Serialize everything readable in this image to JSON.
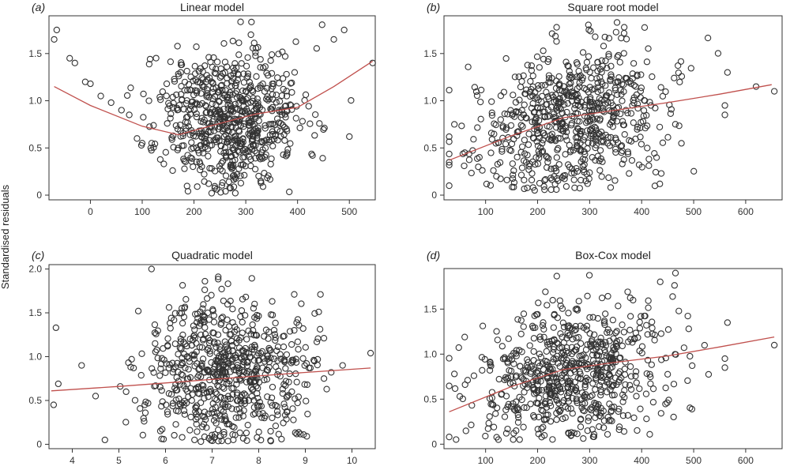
{
  "figure": {
    "ylabel": "Standardised residuals"
  },
  "colors": {
    "points": "#333333",
    "trend": "#c0504d",
    "frame": "#333333"
  },
  "chart_data": [
    {
      "type": "scatter",
      "tag": "(a)",
      "title": "Linear model",
      "xlabel": "",
      "ylabel": "Standardised residuals",
      "xlim": [
        -80,
        550
      ],
      "ylim": [
        -0.05,
        1.9
      ],
      "xticks": [
        0,
        100,
        200,
        300,
        400,
        500
      ],
      "yticks": [
        0,
        0.5,
        1.0,
        1.5
      ],
      "ytick_labels": [
        "0",
        "0.5",
        "1.0",
        "1.5"
      ],
      "grid": false,
      "trend": {
        "x": [
          -70,
          0,
          100,
          170,
          250,
          320,
          400,
          470,
          545
        ],
        "y": [
          1.15,
          0.95,
          0.73,
          0.64,
          0.76,
          0.86,
          0.93,
          1.15,
          1.42
        ]
      },
      "points": {
        "seed": 11,
        "n": 700,
        "x_mean": 275,
        "x_sd": 70,
        "x_min": -70,
        "x_max": 545,
        "y_mean": 0.8,
        "y_sd": 0.38,
        "y_min": 0.02,
        "y_max": 1.85,
        "slope": 0.0,
        "extra": [
          [
            -70,
            1.65
          ],
          [
            -65,
            1.75
          ],
          [
            -40,
            1.45
          ],
          [
            -30,
            1.4
          ],
          [
            -10,
            1.2
          ],
          [
            0,
            1.18
          ],
          [
            20,
            1.05
          ],
          [
            40,
            0.98
          ],
          [
            60,
            0.9
          ],
          [
            75,
            0.85
          ],
          [
            90,
            0.6
          ],
          [
            100,
            0.55
          ],
          [
            490,
            1.75
          ],
          [
            500,
            0.62
          ],
          [
            545,
            1.4
          ],
          [
            470,
            1.65
          ]
        ]
      }
    },
    {
      "type": "scatter",
      "tag": "(b)",
      "title": "Square root model",
      "xlabel": "",
      "ylabel": "",
      "xlim": [
        20,
        670
      ],
      "ylim": [
        -0.05,
        1.9
      ],
      "xticks": [
        100,
        200,
        300,
        400,
        500,
        600
      ],
      "yticks": [
        0,
        0.5,
        1.0,
        1.5
      ],
      "ytick_labels": [
        "0",
        "0.5",
        "1.0",
        "1.5"
      ],
      "grid": false,
      "trend": {
        "x": [
          30,
          150,
          250,
          350,
          450,
          550,
          650
        ],
        "y": [
          0.37,
          0.63,
          0.82,
          0.9,
          0.98,
          1.07,
          1.17
        ]
      },
      "points": {
        "seed": 23,
        "n": 700,
        "x_mean": 270,
        "x_sd": 90,
        "x_min": 30,
        "x_max": 655,
        "y_mean": 0.8,
        "y_sd": 0.38,
        "y_min": 0.05,
        "y_max": 1.85,
        "slope": 0.0011,
        "extra": [
          [
            30,
            0.1
          ],
          [
            40,
            0.75
          ],
          [
            60,
            0.45
          ],
          [
            560,
            0.85
          ],
          [
            560,
            0.95
          ],
          [
            565,
            1.3
          ],
          [
            655,
            1.1
          ],
          [
            620,
            1.15
          ]
        ]
      }
    },
    {
      "type": "scatter",
      "tag": "(c)",
      "title": "Quadratic model",
      "xlabel": "",
      "ylabel": "",
      "xlim": [
        3.5,
        10.5
      ],
      "ylim": [
        -0.05,
        2.05
      ],
      "xticks": [
        4,
        5,
        6,
        7,
        8,
        9,
        10
      ],
      "yticks": [
        0,
        0.5,
        1.0,
        1.5,
        2.0
      ],
      "ytick_labels": [
        "0",
        "0.5",
        "1.0",
        "1.5",
        "2.0"
      ],
      "grid": false,
      "trend": {
        "x": [
          3.55,
          5,
          6,
          7,
          8,
          9,
          10.4
        ],
        "y": [
          0.61,
          0.66,
          0.7,
          0.74,
          0.78,
          0.82,
          0.87
        ]
      },
      "points": {
        "seed": 37,
        "n": 700,
        "x_mean": 7.4,
        "x_sd": 0.9,
        "x_min": 3.55,
        "x_max": 10.4,
        "y_mean": 0.8,
        "y_sd": 0.4,
        "y_min": 0.02,
        "y_max": 2.0,
        "slope": 0.0,
        "extra": [
          [
            3.6,
            0.45
          ],
          [
            3.65,
            1.33
          ],
          [
            3.7,
            0.69
          ],
          [
            4.2,
            0.9
          ],
          [
            4.5,
            0.55
          ],
          [
            4.7,
            0.05
          ],
          [
            5.7,
            2.0
          ],
          [
            10.4,
            1.04
          ],
          [
            9.8,
            0.9
          ],
          [
            9.4,
            0.75
          ]
        ]
      }
    },
    {
      "type": "scatter",
      "tag": "(d)",
      "title": "Box-Cox model",
      "xlabel": "",
      "ylabel": "",
      "xlim": [
        20,
        670
      ],
      "ylim": [
        -0.05,
        1.95
      ],
      "xticks": [
        100,
        200,
        300,
        400,
        500,
        600
      ],
      "yticks": [
        0,
        0.5,
        1.0,
        1.5
      ],
      "ytick_labels": [
        "0",
        "0.5",
        "1.0",
        "1.5"
      ],
      "grid": false,
      "trend": {
        "x": [
          30,
          150,
          250,
          350,
          450,
          550,
          655
        ],
        "y": [
          0.36,
          0.64,
          0.83,
          0.91,
          0.98,
          1.08,
          1.19
        ]
      },
      "points": {
        "seed": 53,
        "n": 700,
        "x_mean": 270,
        "x_sd": 90,
        "x_min": 30,
        "x_max": 655,
        "y_mean": 0.8,
        "y_sd": 0.38,
        "y_min": 0.05,
        "y_max": 1.9,
        "slope": 0.0011,
        "extra": [
          [
            30,
            0.08
          ],
          [
            40,
            0.78
          ],
          [
            465,
            1.9
          ],
          [
            560,
            0.85
          ],
          [
            560,
            0.95
          ],
          [
            565,
            1.35
          ],
          [
            655,
            1.1
          ]
        ]
      }
    }
  ]
}
